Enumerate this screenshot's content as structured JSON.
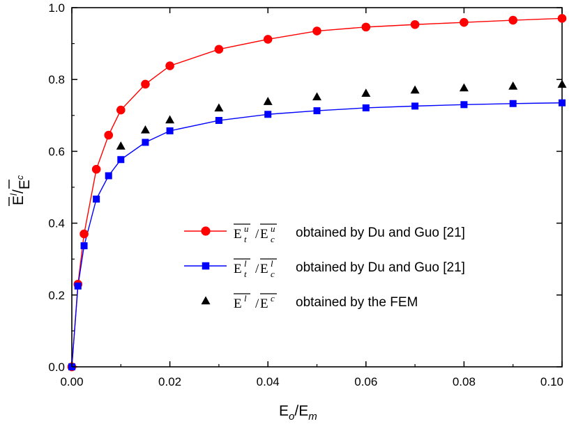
{
  "chart_data": {
    "type": "line",
    "x_axis": {
      "label_main": "E",
      "label_sub_1": "o",
      "label_sep": "/E",
      "label_sub_2": "m",
      "xlim": [
        0,
        0.1
      ],
      "ticks": [
        0.0,
        0.02,
        0.04,
        0.06,
        0.08,
        0.1
      ],
      "tick_labels": [
        "0.00",
        "0.02",
        "0.04",
        "0.06",
        "0.08",
        "0.10"
      ]
    },
    "y_axis": {
      "label_a": "E",
      "label_a_sup": "l",
      "label_sep": "/",
      "label_b": "E",
      "label_b_sup": "c",
      "ylim": [
        0,
        1.0
      ],
      "ticks": [
        0.0,
        0.2,
        0.4,
        0.6,
        0.8,
        1.0
      ],
      "tick_labels": [
        "0.0",
        "0.2",
        "0.4",
        "0.6",
        "0.8",
        "1.0"
      ]
    },
    "grid": false,
    "legend_position": "center-right",
    "series": [
      {
        "name": "obtained by Du and Guo [21]",
        "symbol": {
          "a": "E",
          "a_sub": "t",
          "a_sup": "u",
          "sep": "/",
          "b": "E",
          "b_sub": "c",
          "b_sup": "u"
        },
        "color": "#ff0000",
        "marker": "circle",
        "line": true,
        "x": [
          0,
          0.00125,
          0.0025,
          0.005,
          0.0075,
          0.01,
          0.015,
          0.02,
          0.03,
          0.04,
          0.05,
          0.06,
          0.07,
          0.08,
          0.09,
          0.1
        ],
        "y": [
          0.0,
          0.23,
          0.37,
          0.55,
          0.645,
          0.715,
          0.787,
          0.838,
          0.884,
          0.912,
          0.935,
          0.946,
          0.953,
          0.959,
          0.965,
          0.97
        ]
      },
      {
        "name": "obtained by Du and Guo [21]",
        "symbol": {
          "a": "E",
          "a_sub": "t",
          "a_sup": "l",
          "sep": "/",
          "b": "E",
          "b_sub": "c",
          "b_sup": "l"
        },
        "color": "#0000ff",
        "marker": "square",
        "line": true,
        "x": [
          0,
          0.00125,
          0.0025,
          0.005,
          0.0075,
          0.01,
          0.015,
          0.02,
          0.03,
          0.04,
          0.05,
          0.06,
          0.07,
          0.08,
          0.09,
          0.1
        ],
        "y": [
          0.0,
          0.225,
          0.337,
          0.467,
          0.532,
          0.577,
          0.625,
          0.657,
          0.686,
          0.703,
          0.713,
          0.721,
          0.726,
          0.73,
          0.733,
          0.735
        ]
      },
      {
        "name": "obtained by the FEM",
        "symbol": {
          "a": "E",
          "a_sub": "",
          "a_sup": "l",
          "sep": "/",
          "b": "E",
          "b_sub": "",
          "b_sup": "c"
        },
        "color": "#000000",
        "marker": "triangle",
        "line": false,
        "x": [
          0.01,
          0.015,
          0.02,
          0.03,
          0.04,
          0.05,
          0.06,
          0.07,
          0.08,
          0.09,
          0.1
        ],
        "y": [
          0.615,
          0.66,
          0.688,
          0.721,
          0.739,
          0.752,
          0.762,
          0.771,
          0.777,
          0.782,
          0.787
        ]
      }
    ]
  }
}
